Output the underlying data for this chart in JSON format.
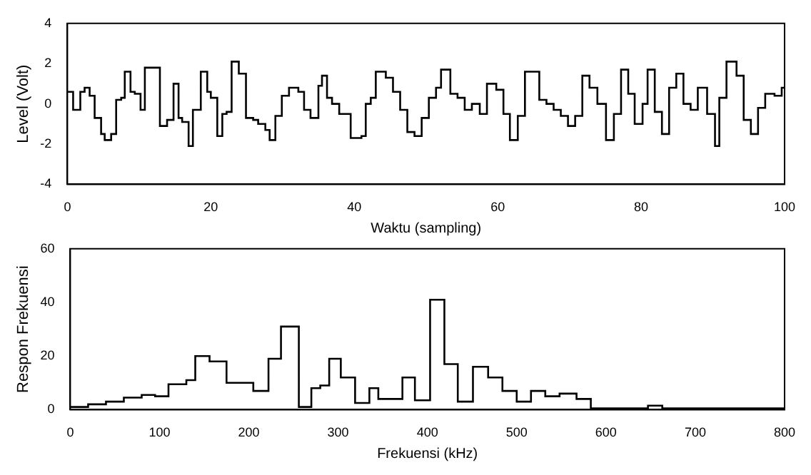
{
  "chart_data": [
    {
      "type": "step",
      "xlabel": "Waktu (sampling)",
      "ylabel": "Level (Volt)",
      "color": "#000000",
      "grid": false,
      "x": [
        0,
        0.8,
        1.8,
        2.4,
        3.1,
        3.8,
        4.7,
        5.2,
        6.1,
        6.8,
        7.5,
        8,
        8.8,
        9.4,
        10.2,
        10.8,
        12.9,
        13.9,
        14.8,
        15.5,
        16,
        16.9,
        17.5,
        18.6,
        19.5,
        20,
        20.9,
        21.6,
        22.2,
        22.9,
        23.9,
        24.9,
        25.9,
        26.6,
        27.6,
        28.2,
        29,
        29.9,
        30.9,
        32.2,
        33,
        33.9,
        35,
        35.5,
        36.2,
        36.9,
        37.9,
        39.5,
        41,
        41.6,
        42.3,
        43,
        44.4,
        45.4,
        46.4,
        47.4,
        48.4,
        49.4,
        50.4,
        51.4,
        52.1,
        53.4,
        54.4,
        55.4,
        56.4,
        57.5,
        58.5,
        59.8,
        60.8,
        61.7,
        62.8,
        63.8,
        65.8,
        66.8,
        67.8,
        68.8,
        69.8,
        70.8,
        71.8,
        72.8,
        73.9,
        75.1,
        76.2,
        77.2,
        78.2,
        79.1,
        80.2,
        80.9,
        81.9,
        82.9,
        83.9,
        84.9,
        85.9,
        86.9,
        87.9,
        89.2,
        90.3,
        90.9,
        91.9,
        93.3,
        94.3,
        95.3,
        96.3,
        97.3,
        98.6,
        99.6,
        100
      ],
      "values": [
        0.6,
        -0.3,
        0.6,
        0.8,
        0.4,
        -0.7,
        -1.5,
        -1.8,
        -1.5,
        0.2,
        0.3,
        1.6,
        0.6,
        0.5,
        -0.3,
        1.8,
        -1.1,
        -0.8,
        1.0,
        -0.7,
        -0.9,
        -2.1,
        -0.3,
        1.6,
        0.6,
        0.3,
        -1.6,
        -0.5,
        -0.4,
        2.1,
        1.5,
        -0.7,
        -0.8,
        -1.0,
        -1.3,
        -1.8,
        -0.6,
        0.4,
        0.8,
        0.6,
        -0.3,
        -0.7,
        0.9,
        1.4,
        0.3,
        0.0,
        -0.5,
        -1.7,
        -1.6,
        0.0,
        0.3,
        1.6,
        1.3,
        0.6,
        -0.3,
        -1.4,
        -1.6,
        -0.7,
        0.3,
        0.8,
        1.7,
        0.5,
        0.3,
        -0.3,
        0.0,
        -0.5,
        1.0,
        0.7,
        -0.5,
        -1.8,
        -0.6,
        1.6,
        0.2,
        0.0,
        -0.3,
        -0.6,
        -1.1,
        -0.6,
        1.4,
        0.8,
        0.0,
        -1.8,
        -0.5,
        1.7,
        0.5,
        -1.0,
        0.0,
        1.7,
        -0.4,
        -1.5,
        0.8,
        1.5,
        0.0,
        -0.3,
        0.8,
        -0.5,
        -2.1,
        0.3,
        2.1,
        1.4,
        -0.8,
        -1.5,
        -0.2,
        0.5,
        0.4,
        0.8,
        0.8
      ],
      "xlim": [
        0,
        100
      ],
      "xticks": [
        0,
        20,
        40,
        60,
        80,
        100
      ],
      "ylim": [
        -4,
        4
      ],
      "yticks": [
        -4,
        -2,
        0,
        2,
        4
      ]
    },
    {
      "type": "step",
      "xlabel": "Frekuensi (kHz)",
      "ylabel": "Respon Frekuensi",
      "color": "#000000",
      "grid": false,
      "x": [
        0,
        20,
        40,
        60,
        80,
        95,
        110,
        130,
        140,
        156,
        175,
        205,
        222,
        236,
        256,
        270,
        280,
        290,
        303,
        319,
        335,
        345,
        372,
        386,
        403,
        419,
        434,
        451,
        468,
        484,
        500,
        516,
        532,
        548,
        567,
        583,
        647,
        663,
        800
      ],
      "values": [
        1,
        2,
        3,
        4.5,
        5.5,
        5,
        9.5,
        11,
        20,
        18,
        10,
        7,
        19,
        31,
        1,
        8,
        9,
        19,
        12,
        2.5,
        8,
        4,
        12,
        3.5,
        41,
        17,
        3,
        16,
        12,
        7,
        3,
        7,
        5,
        6,
        4,
        0.5,
        1.5,
        0.5,
        0.5
      ],
      "xlim": [
        0,
        800
      ],
      "xticks": [
        0,
        100,
        200,
        300,
        400,
        500,
        600,
        700,
        800
      ],
      "ylim": [
        0,
        60
      ],
      "yticks": [
        0,
        20,
        40,
        60
      ]
    }
  ]
}
